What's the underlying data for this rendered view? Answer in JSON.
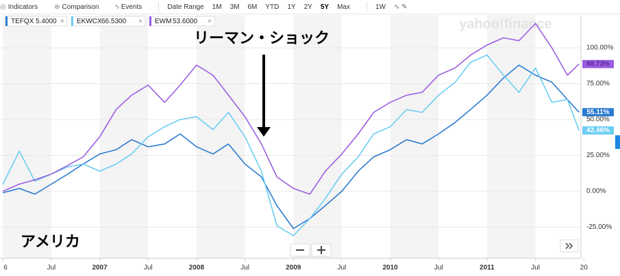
{
  "toolbar": {
    "items": [
      "Indicators",
      "Comparison",
      "Events"
    ],
    "ranges": [
      "Date Range",
      "1M",
      "3M",
      "6M",
      "YTD",
      "1Y",
      "2Y",
      "5Y",
      "Max"
    ],
    "selected": "5Y",
    "interval": "1W"
  },
  "watermark": "yahoo!finance",
  "chart_data": {
    "type": "line",
    "annotations": [
      "リーマン・ショック",
      "アメリカ"
    ],
    "x": [
      2006,
      2006.17,
      2006.33,
      2006.5,
      2006.67,
      2006.83,
      2007,
      2007.17,
      2007.33,
      2007.5,
      2007.67,
      2007.83,
      2008,
      2008.17,
      2008.33,
      2008.5,
      2008.67,
      2008.83,
      2009,
      2009.17,
      2009.33,
      2009.5,
      2009.67,
      2009.83,
      2010,
      2010.17,
      2010.33,
      2010.5,
      2010.67,
      2010.83,
      2011,
      2011.17,
      2011.33,
      2011.5,
      2011.67,
      2011.83,
      2011.95
    ],
    "series": [
      {
        "name": "TEFQX",
        "quote": 5.4,
        "quote_label": "5.4000",
        "color": "#2b7bd0",
        "end_label": "55.11%",
        "values": [
          -1,
          2,
          -2,
          5,
          12,
          19,
          26,
          29,
          36,
          31,
          33,
          40,
          31,
          26,
          33,
          19,
          10,
          -10,
          -26,
          -19,
          -10,
          0,
          14,
          24,
          29,
          36,
          33,
          40,
          48,
          57,
          67,
          79,
          88,
          81,
          76,
          64,
          55.11
        ]
      },
      {
        "name": "EKWCX",
        "quote": 66.53,
        "quote_label": "66.5300",
        "color": "#6ccdf2",
        "end_label": "42.46%",
        "values": [
          5,
          28,
          7,
          12,
          17,
          19,
          14,
          19,
          26,
          38,
          45,
          50,
          52,
          43,
          55,
          38,
          14,
          -24,
          -31,
          -19,
          -5,
          12,
          24,
          40,
          45,
          57,
          55,
          67,
          76,
          90,
          95,
          81,
          69,
          86,
          62,
          64,
          42.46
        ]
      },
      {
        "name": "EWM",
        "quote": 53.6,
        "quote_label": "53.6000",
        "color": "#9a5ee0",
        "end_label": "88.73%",
        "values": [
          0,
          5,
          8,
          12,
          18,
          24,
          38,
          57,
          67,
          74,
          62,
          74,
          88,
          81,
          67,
          52,
          33,
          10,
          2,
          -2,
          14,
          26,
          40,
          55,
          62,
          67,
          69,
          81,
          86,
          95,
          102,
          107,
          105,
          117,
          100,
          81,
          88.73
        ]
      }
    ],
    "xlim": [
      2005.97,
      2011.97
    ],
    "xticks": [
      {
        "value": 2006,
        "label": "6"
      },
      {
        "value": 2006.5,
        "label": "Jul"
      },
      2007,
      {
        "value": 2007.5,
        "label": "Jul"
      },
      2008,
      {
        "value": 2008.5,
        "label": "Jul"
      },
      2009,
      {
        "value": 2009.5,
        "label": "Jul"
      },
      2010,
      {
        "value": 2010.5,
        "label": "Jul"
      },
      2011,
      {
        "value": 2011.5,
        "label": "Jul"
      },
      {
        "value": 2012,
        "label": "20"
      }
    ],
    "ylim": [
      -46.7,
      122.9
    ],
    "yticks": [
      {
        "value": 100,
        "label": "100.00%"
      },
      {
        "value": 75,
        "label": "75.00%"
      },
      {
        "value": 50,
        "label": "50.00%"
      },
      {
        "value": 25,
        "label": "25.00%"
      },
      {
        "value": 0,
        "label": "0.00%"
      },
      {
        "value": -25,
        "label": "-25.00%"
      }
    ],
    "grid": true
  }
}
